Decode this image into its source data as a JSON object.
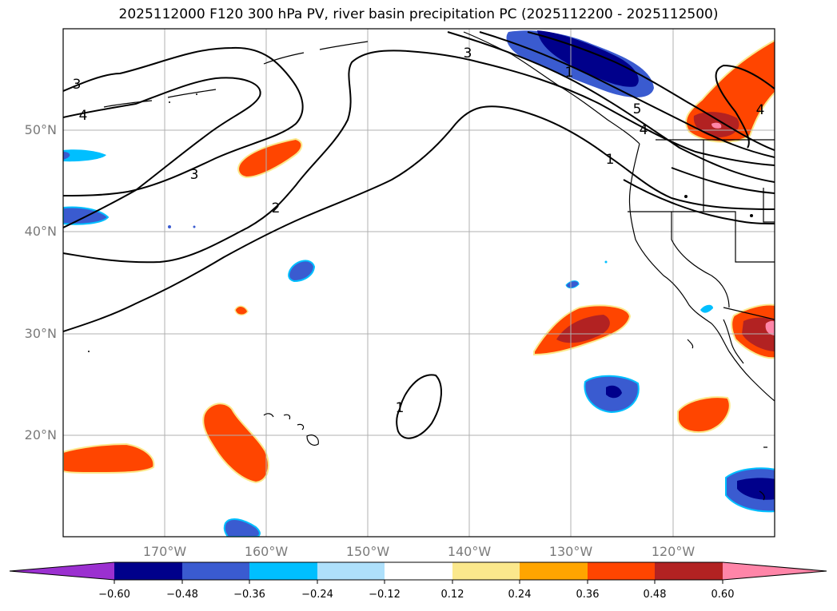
{
  "title": "2025112000 F120 300 hPa PV, river basin precipitation PC (2025112200 - 2025112500)",
  "lat_labels": [
    "50°N",
    "40°N",
    "30°N",
    "20°N"
  ],
  "lon_labels": [
    "170°W",
    "160°W",
    "150°W",
    "140°W",
    "130°W",
    "120°W"
  ],
  "contour_labels": [
    "3",
    "4",
    "3",
    "2",
    "1",
    "3",
    "5",
    "4",
    "1",
    "4",
    "1"
  ],
  "colorbar": {
    "ticks": [
      "−0.60",
      "−0.48",
      "−0.36",
      "−0.24",
      "−0.12",
      "0.12",
      "0.24",
      "0.36",
      "0.48",
      "0.60"
    ],
    "colors": {
      "lt_neg_060": "#9b30d0",
      "neg_060_048": "#00008b",
      "neg_048_036": "#3a5bd0",
      "neg_036_024": "#00bfff",
      "neg_024_012": "#aee0fb",
      "neg_012_012": "#ffffff",
      "pos_012_024": "#fbe88c",
      "pos_024_036": "#ffa500",
      "pos_036_048": "#ff4500",
      "pos_048_060": "#b22222",
      "gt_060": "#ff85a8"
    }
  }
}
